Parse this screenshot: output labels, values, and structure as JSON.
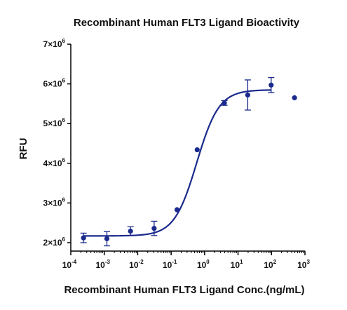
{
  "chart_data": {
    "type": "scatter",
    "title": "Recombinant Human FLT3 Ligand Bioactivity",
    "xlabel": "Recombinant Human FLT3 Ligand Conc.(ng/mL)",
    "ylabel": "RFU",
    "x_scale": "log",
    "xlim": [
      0.0001,
      1000
    ],
    "ylim": [
      1900000,
      7000000
    ],
    "x_ticks": [
      {
        "base": "10",
        "exp": "-4",
        "value": 0.0001
      },
      {
        "base": "10",
        "exp": "-3",
        "value": 0.001
      },
      {
        "base": "10",
        "exp": "-2",
        "value": 0.01
      },
      {
        "base": "10",
        "exp": "-1",
        "value": 0.1
      },
      {
        "base": "10",
        "exp": "0",
        "value": 1
      },
      {
        "base": "10",
        "exp": "1",
        "value": 10
      },
      {
        "base": "10",
        "exp": "2",
        "value": 100
      },
      {
        "base": "10",
        "exp": "3",
        "value": 1000
      }
    ],
    "y_ticks": [
      {
        "mant": "2×10",
        "exp": "6",
        "value": 2000000
      },
      {
        "mant": "3×10",
        "exp": "6",
        "value": 3000000
      },
      {
        "mant": "4×10",
        "exp": "6",
        "value": 4000000
      },
      {
        "mant": "5×10",
        "exp": "6",
        "value": 5000000
      },
      {
        "mant": "6×10",
        "exp": "6",
        "value": 6000000
      },
      {
        "mant": "7×10",
        "exp": "6",
        "value": 7000000
      }
    ],
    "grid": false,
    "color": "#1a2a8c",
    "series": [
      {
        "x": [
          0.00024,
          0.0012,
          0.0061,
          0.031,
          0.15,
          0.6,
          3.9,
          19.5,
          97.7,
          488
        ],
        "y": [
          2120000,
          2100000,
          2290000,
          2360000,
          2830000,
          4340000,
          5520000,
          5720000,
          5970000,
          5650000
        ],
        "err": [
          120000,
          180000,
          110000,
          180000,
          0,
          0,
          60000,
          380000,
          190000,
          0
        ]
      }
    ],
    "fit": {
      "model": "4PL",
      "bottom": 2170000,
      "top": 5850000,
      "ec50": 0.58,
      "hill": 1.3
    }
  }
}
